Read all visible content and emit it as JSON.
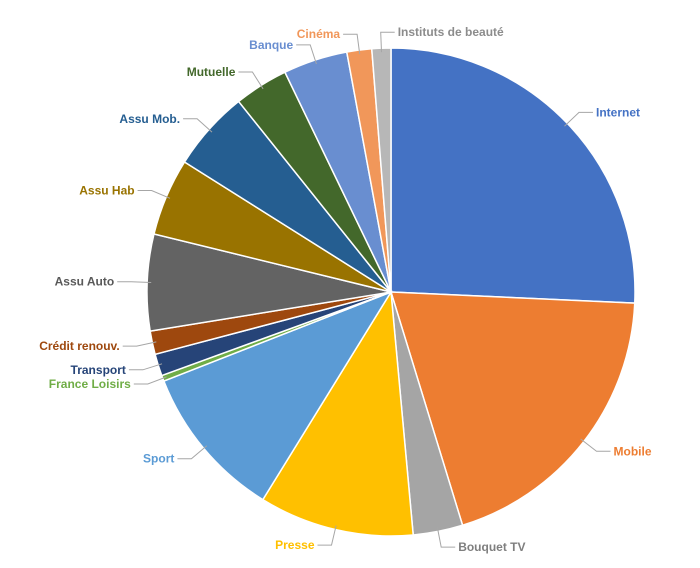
{
  "chart_data": {
    "type": "pie",
    "title": "",
    "series": [
      {
        "label": "Internet",
        "value": 26.6,
        "color": "#4472C4",
        "label_color": "#4472C4",
        "side": "right"
      },
      {
        "label": "Mobile",
        "value": 20.2,
        "color": "#ED7D31",
        "label_color": "#ED7D31",
        "side": "right"
      },
      {
        "label": "Bouquet TV",
        "value": 3.4,
        "color": "#A5A5A5",
        "label_color": "#7F7F7F",
        "side": "right"
      },
      {
        "label": "Presse",
        "value": 10.6,
        "color": "#FFC000",
        "label_color": "#FFC000",
        "side": "left"
      },
      {
        "label": "Sport",
        "value": 10.6,
        "color": "#5B9BD5",
        "label_color": "#5B9BD5",
        "side": "left"
      },
      {
        "label": "France Loisirs",
        "value": 0.4,
        "color": "#70AD47",
        "label_color": "#70AD47",
        "side": "left"
      },
      {
        "label": "Transport",
        "value": 1.5,
        "color": "#264478",
        "label_color": "#264478",
        "side": "left"
      },
      {
        "label": "Crédit renouv.",
        "value": 1.6,
        "color": "#9E480E",
        "label_color": "#9E480E",
        "side": "left"
      },
      {
        "label": "Assu Auto",
        "value": 6.6,
        "color": "#636363",
        "label_color": "#595959",
        "side": "left"
      },
      {
        "label": "Assu Hab",
        "value": 5.3,
        "color": "#997300",
        "label_color": "#997300",
        "side": "left"
      },
      {
        "label": "Assu Mob.",
        "value": 5.5,
        "color": "#255E91",
        "label_color": "#255E91",
        "side": "left"
      },
      {
        "label": "Mutuelle",
        "value": 3.7,
        "color": "#43682B",
        "label_color": "#43682B",
        "side": "left"
      },
      {
        "label": "Banque",
        "value": 4.4,
        "color": "#698ED0",
        "label_color": "#698ED0",
        "side": "left"
      },
      {
        "label": "Cinéma",
        "value": 1.7,
        "color": "#F1975A",
        "label_color": "#F1975A",
        "side": "left"
      },
      {
        "label": "Instituts de beauté",
        "value": 1.3,
        "color": "#B7B7B7",
        "label_color": "#8C8C8C",
        "side": "right"
      }
    ],
    "legend": "none",
    "data_labels": "category name with leader lines"
  }
}
